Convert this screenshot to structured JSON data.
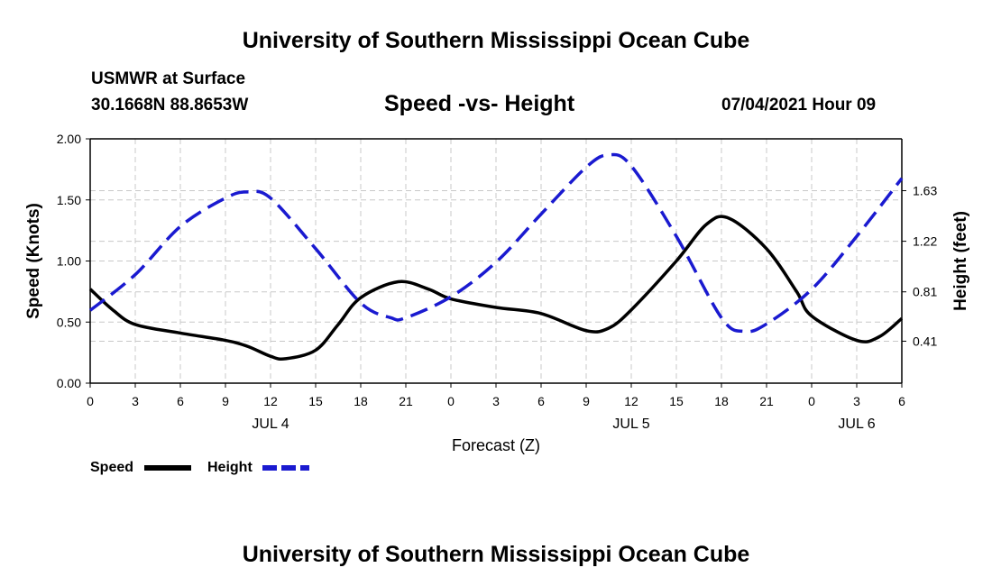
{
  "header": {
    "title": "University of Southern Mississippi Ocean Cube",
    "station": "USMWR at Surface",
    "coords": "30.1668N  88.8653W",
    "subtitle": "Speed -vs- Height",
    "datetime": "07/04/2021 Hour 09"
  },
  "footer": {
    "title": "University of Southern Mississippi Ocean Cube"
  },
  "legend": {
    "speed_label": "Speed",
    "height_label": "Height"
  },
  "chart_data": {
    "type": "line",
    "xlabel": "Forecast (Z)",
    "ylabel": "Speed (Knots)",
    "y2label": "Height (feet)",
    "xlim": [
      0,
      54
    ],
    "ylim": [
      0,
      2
    ],
    "y2lim": [
      0.07,
      2.05
    ],
    "grid": true,
    "legend_position": "bottom-left",
    "x_ticks": [
      0,
      3,
      6,
      9,
      12,
      15,
      18,
      21,
      24,
      27,
      30,
      33,
      36,
      39,
      42,
      45,
      48,
      51,
      54
    ],
    "x_tick_labels": [
      "0",
      "3",
      "6",
      "9",
      "12",
      "15",
      "18",
      "21",
      "0",
      "3",
      "6",
      "9",
      "12",
      "15",
      "18",
      "21",
      "0",
      "3",
      "6"
    ],
    "date_labels": [
      {
        "x": 12,
        "label": "JUL 4"
      },
      {
        "x": 36,
        "label": "JUL 5"
      },
      {
        "x": 51,
        "label": "JUL 6"
      }
    ],
    "y_ticks": [
      0,
      0.5,
      1.0,
      1.5,
      2.0
    ],
    "y_tick_labels": [
      "0.00",
      "0.50",
      "1.00",
      "1.50",
      "2.00"
    ],
    "y2_ticks": [
      0.41,
      0.81,
      1.22,
      1.63
    ],
    "y2_tick_labels": [
      "0.41",
      "0.81",
      "1.22",
      "1.63"
    ],
    "series": [
      {
        "name": "Speed",
        "axis": "left",
        "color": "#000000",
        "dash": "solid",
        "x": [
          0,
          1.5,
          3,
          6,
          9,
          10.5,
          12,
          13,
          15,
          16.5,
          18,
          20.5,
          22.5,
          24,
          27,
          30,
          33,
          34.5,
          36,
          39,
          41,
          42.5,
          45,
          47,
          48,
          51,
          52.5,
          54
        ],
        "y": [
          0.77,
          0.6,
          0.48,
          0.41,
          0.35,
          0.3,
          0.22,
          0.2,
          0.27,
          0.48,
          0.7,
          0.83,
          0.77,
          0.69,
          0.62,
          0.57,
          0.43,
          0.45,
          0.6,
          1.0,
          1.3,
          1.35,
          1.1,
          0.75,
          0.55,
          0.35,
          0.38,
          0.53
        ]
      },
      {
        "name": "Height",
        "axis": "right",
        "color": "#1a1ad0",
        "dash": "dashed",
        "x": [
          0,
          3,
          6,
          9,
          10.5,
          12,
          15,
          18,
          20,
          21,
          24,
          27,
          30,
          33,
          34.5,
          36,
          39,
          42,
          43.5,
          45,
          48,
          51,
          54
        ],
        "y": [
          0.66,
          0.95,
          1.34,
          1.57,
          1.62,
          1.57,
          1.16,
          0.72,
          0.6,
          0.6,
          0.77,
          1.05,
          1.44,
          1.82,
          1.92,
          1.83,
          1.26,
          0.6,
          0.49,
          0.55,
          0.83,
          1.26,
          1.73
        ]
      }
    ]
  }
}
